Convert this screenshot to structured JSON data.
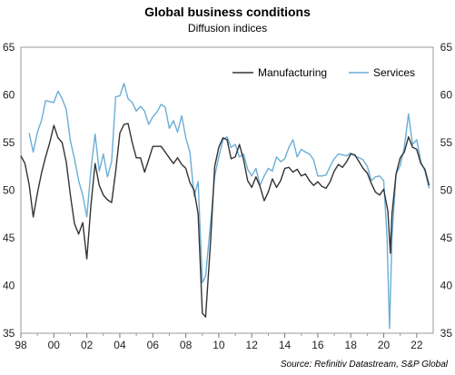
{
  "chart_data": {
    "type": "line",
    "title": "Global business conditions",
    "subtitle": "Diffusion indices",
    "source": "Source: Refinitiv Datastream, S&P Global",
    "ylim": [
      35,
      65
    ],
    "y_ticks": [
      35,
      40,
      45,
      50,
      55,
      60,
      65
    ],
    "xlim": [
      1998,
      2023
    ],
    "x_ticks": [
      {
        "value": 1998,
        "label": "98"
      },
      {
        "value": 2000,
        "label": "00"
      },
      {
        "value": 2002,
        "label": "02"
      },
      {
        "value": 2004,
        "label": "04"
      },
      {
        "value": 2006,
        "label": "06"
      },
      {
        "value": 2008,
        "label": "08"
      },
      {
        "value": 2010,
        "label": "10"
      },
      {
        "value": 2012,
        "label": "12"
      },
      {
        "value": 2014,
        "label": "14"
      },
      {
        "value": 2016,
        "label": "16"
      },
      {
        "value": 2018,
        "label": "18"
      },
      {
        "value": 2020,
        "label": "20"
      },
      {
        "value": 2022,
        "label": "22"
      }
    ],
    "legend_position": "top-right",
    "series": [
      {
        "name": "Manufacturing",
        "color": "#333333",
        "points": [
          [
            1998.0,
            53.6
          ],
          [
            1998.25,
            52.8
          ],
          [
            1998.5,
            50.6
          ],
          [
            1998.75,
            47.2
          ],
          [
            1999.0,
            49.7
          ],
          [
            1999.25,
            51.8
          ],
          [
            1999.5,
            53.5
          ],
          [
            1999.75,
            55.0
          ],
          [
            2000.0,
            56.8
          ],
          [
            2000.25,
            55.5
          ],
          [
            2000.5,
            55.0
          ],
          [
            2000.75,
            53.0
          ],
          [
            2001.0,
            49.5
          ],
          [
            2001.25,
            46.5
          ],
          [
            2001.5,
            45.4
          ],
          [
            2001.75,
            46.6
          ],
          [
            2002.0,
            42.8
          ],
          [
            2002.25,
            48.5
          ],
          [
            2002.5,
            52.8
          ],
          [
            2002.75,
            50.5
          ],
          [
            2003.0,
            49.5
          ],
          [
            2003.25,
            49.0
          ],
          [
            2003.5,
            48.7
          ],
          [
            2003.75,
            52.0
          ],
          [
            2004.0,
            56.0
          ],
          [
            2004.25,
            56.9
          ],
          [
            2004.5,
            57.0
          ],
          [
            2004.75,
            55.0
          ],
          [
            2005.0,
            53.4
          ],
          [
            2005.25,
            53.4
          ],
          [
            2005.5,
            51.9
          ],
          [
            2005.75,
            53.2
          ],
          [
            2006.0,
            54.6
          ],
          [
            2006.5,
            54.6
          ],
          [
            2006.75,
            54.0
          ],
          [
            2007.0,
            53.4
          ],
          [
            2007.25,
            52.8
          ],
          [
            2007.5,
            53.4
          ],
          [
            2007.75,
            52.7
          ],
          [
            2008.0,
            52.3
          ],
          [
            2008.25,
            50.8
          ],
          [
            2008.5,
            50.0
          ],
          [
            2008.75,
            47.5
          ],
          [
            2009.0,
            37.1
          ],
          [
            2009.2,
            36.7
          ],
          [
            2009.5,
            44.5
          ],
          [
            2009.75,
            52.5
          ],
          [
            2010.0,
            54.5
          ],
          [
            2010.25,
            55.5
          ],
          [
            2010.5,
            55.3
          ],
          [
            2010.75,
            53.3
          ],
          [
            2011.0,
            53.5
          ],
          [
            2011.25,
            54.8
          ],
          [
            2011.5,
            53.2
          ],
          [
            2011.75,
            51.0
          ],
          [
            2012.0,
            50.3
          ],
          [
            2012.25,
            51.4
          ],
          [
            2012.5,
            50.4
          ],
          [
            2012.75,
            48.9
          ],
          [
            2013.0,
            49.8
          ],
          [
            2013.25,
            51.2
          ],
          [
            2013.5,
            50.3
          ],
          [
            2013.75,
            51.0
          ],
          [
            2014.0,
            52.3
          ],
          [
            2014.25,
            52.4
          ],
          [
            2014.5,
            51.9
          ],
          [
            2014.75,
            52.2
          ],
          [
            2015.0,
            51.5
          ],
          [
            2015.25,
            51.7
          ],
          [
            2015.5,
            51.0
          ],
          [
            2015.75,
            50.5
          ],
          [
            2016.0,
            50.9
          ],
          [
            2016.25,
            50.4
          ],
          [
            2016.5,
            50.2
          ],
          [
            2016.75,
            50.9
          ],
          [
            2017.0,
            52.0
          ],
          [
            2017.25,
            52.7
          ],
          [
            2017.5,
            52.4
          ],
          [
            2017.75,
            53.0
          ],
          [
            2018.0,
            53.8
          ],
          [
            2018.25,
            53.7
          ],
          [
            2018.5,
            53.0
          ],
          [
            2018.75,
            52.3
          ],
          [
            2019.0,
            51.8
          ],
          [
            2019.25,
            50.7
          ],
          [
            2019.5,
            49.8
          ],
          [
            2019.75,
            49.5
          ],
          [
            2020.0,
            50.1
          ],
          [
            2020.25,
            47.8
          ],
          [
            2020.4,
            43.4
          ],
          [
            2020.5,
            47.5
          ],
          [
            2020.75,
            51.7
          ],
          [
            2021.0,
            53.4
          ],
          [
            2021.25,
            54.0
          ],
          [
            2021.5,
            55.6
          ],
          [
            2021.75,
            54.5
          ],
          [
            2022.0,
            54.3
          ],
          [
            2022.25,
            52.8
          ],
          [
            2022.5,
            52.2
          ],
          [
            2022.75,
            50.5
          ]
        ]
      },
      {
        "name": "Services",
        "color": "#6aaed6",
        "points": [
          [
            1998.5,
            56.0
          ],
          [
            1998.75,
            54.0
          ],
          [
            1999.0,
            56.1
          ],
          [
            1999.25,
            57.3
          ],
          [
            1999.5,
            59.4
          ],
          [
            1999.75,
            59.3
          ],
          [
            2000.0,
            59.2
          ],
          [
            2000.25,
            60.4
          ],
          [
            2000.5,
            59.6
          ],
          [
            2000.75,
            58.5
          ],
          [
            2001.0,
            55.2
          ],
          [
            2001.25,
            53.3
          ],
          [
            2001.5,
            51.0
          ],
          [
            2001.75,
            49.5
          ],
          [
            2002.0,
            47.2
          ],
          [
            2002.25,
            52.2
          ],
          [
            2002.5,
            55.9
          ],
          [
            2002.75,
            52.0
          ],
          [
            2003.0,
            53.8
          ],
          [
            2003.25,
            51.4
          ],
          [
            2003.5,
            53.0
          ],
          [
            2003.75,
            59.8
          ],
          [
            2004.0,
            59.9
          ],
          [
            2004.25,
            61.2
          ],
          [
            2004.5,
            59.6
          ],
          [
            2004.75,
            59.2
          ],
          [
            2005.0,
            58.3
          ],
          [
            2005.25,
            58.8
          ],
          [
            2005.5,
            58.3
          ],
          [
            2005.75,
            56.9
          ],
          [
            2006.0,
            57.7
          ],
          [
            2006.25,
            58.2
          ],
          [
            2006.5,
            59.0
          ],
          [
            2006.75,
            58.7
          ],
          [
            2007.0,
            56.5
          ],
          [
            2007.25,
            57.3
          ],
          [
            2007.5,
            56.1
          ],
          [
            2007.75,
            57.8
          ],
          [
            2008.0,
            55.5
          ],
          [
            2008.25,
            54.0
          ],
          [
            2008.5,
            49.4
          ],
          [
            2008.75,
            50.9
          ],
          [
            2009.0,
            40.3
          ],
          [
            2009.2,
            41.0
          ],
          [
            2009.5,
            46.5
          ],
          [
            2009.75,
            51.5
          ],
          [
            2010.0,
            53.5
          ],
          [
            2010.25,
            55.3
          ],
          [
            2010.5,
            55.6
          ],
          [
            2010.75,
            54.5
          ],
          [
            2011.0,
            54.8
          ],
          [
            2011.25,
            53.5
          ],
          [
            2011.5,
            53.8
          ],
          [
            2011.75,
            52.2
          ],
          [
            2012.0,
            51.5
          ],
          [
            2012.25,
            52.3
          ],
          [
            2012.5,
            50.5
          ],
          [
            2012.75,
            51.5
          ],
          [
            2013.0,
            52.3
          ],
          [
            2013.25,
            52.0
          ],
          [
            2013.5,
            53.5
          ],
          [
            2013.75,
            53.0
          ],
          [
            2014.0,
            53.3
          ],
          [
            2014.25,
            54.5
          ],
          [
            2014.5,
            55.3
          ],
          [
            2014.75,
            53.5
          ],
          [
            2015.0,
            54.3
          ],
          [
            2015.25,
            54.0
          ],
          [
            2015.5,
            53.8
          ],
          [
            2015.75,
            53.2
          ],
          [
            2016.0,
            51.5
          ],
          [
            2016.25,
            51.5
          ],
          [
            2016.5,
            51.6
          ],
          [
            2016.75,
            52.5
          ],
          [
            2017.0,
            53.3
          ],
          [
            2017.25,
            53.8
          ],
          [
            2017.5,
            53.7
          ],
          [
            2017.75,
            53.6
          ],
          [
            2018.0,
            53.9
          ],
          [
            2018.25,
            53.6
          ],
          [
            2018.5,
            53.4
          ],
          [
            2018.75,
            53.2
          ],
          [
            2019.0,
            52.5
          ],
          [
            2019.25,
            51.0
          ],
          [
            2019.5,
            51.4
          ],
          [
            2019.75,
            51.5
          ],
          [
            2020.0,
            51.0
          ],
          [
            2020.2,
            45.0
          ],
          [
            2020.35,
            35.5
          ],
          [
            2020.5,
            45.0
          ],
          [
            2020.75,
            51.7
          ],
          [
            2021.0,
            52.6
          ],
          [
            2021.25,
            54.5
          ],
          [
            2021.5,
            58.0
          ],
          [
            2021.75,
            54.8
          ],
          [
            2022.0,
            55.3
          ],
          [
            2022.25,
            53.0
          ],
          [
            2022.5,
            52.0
          ],
          [
            2022.75,
            50.2
          ]
        ]
      }
    ]
  }
}
